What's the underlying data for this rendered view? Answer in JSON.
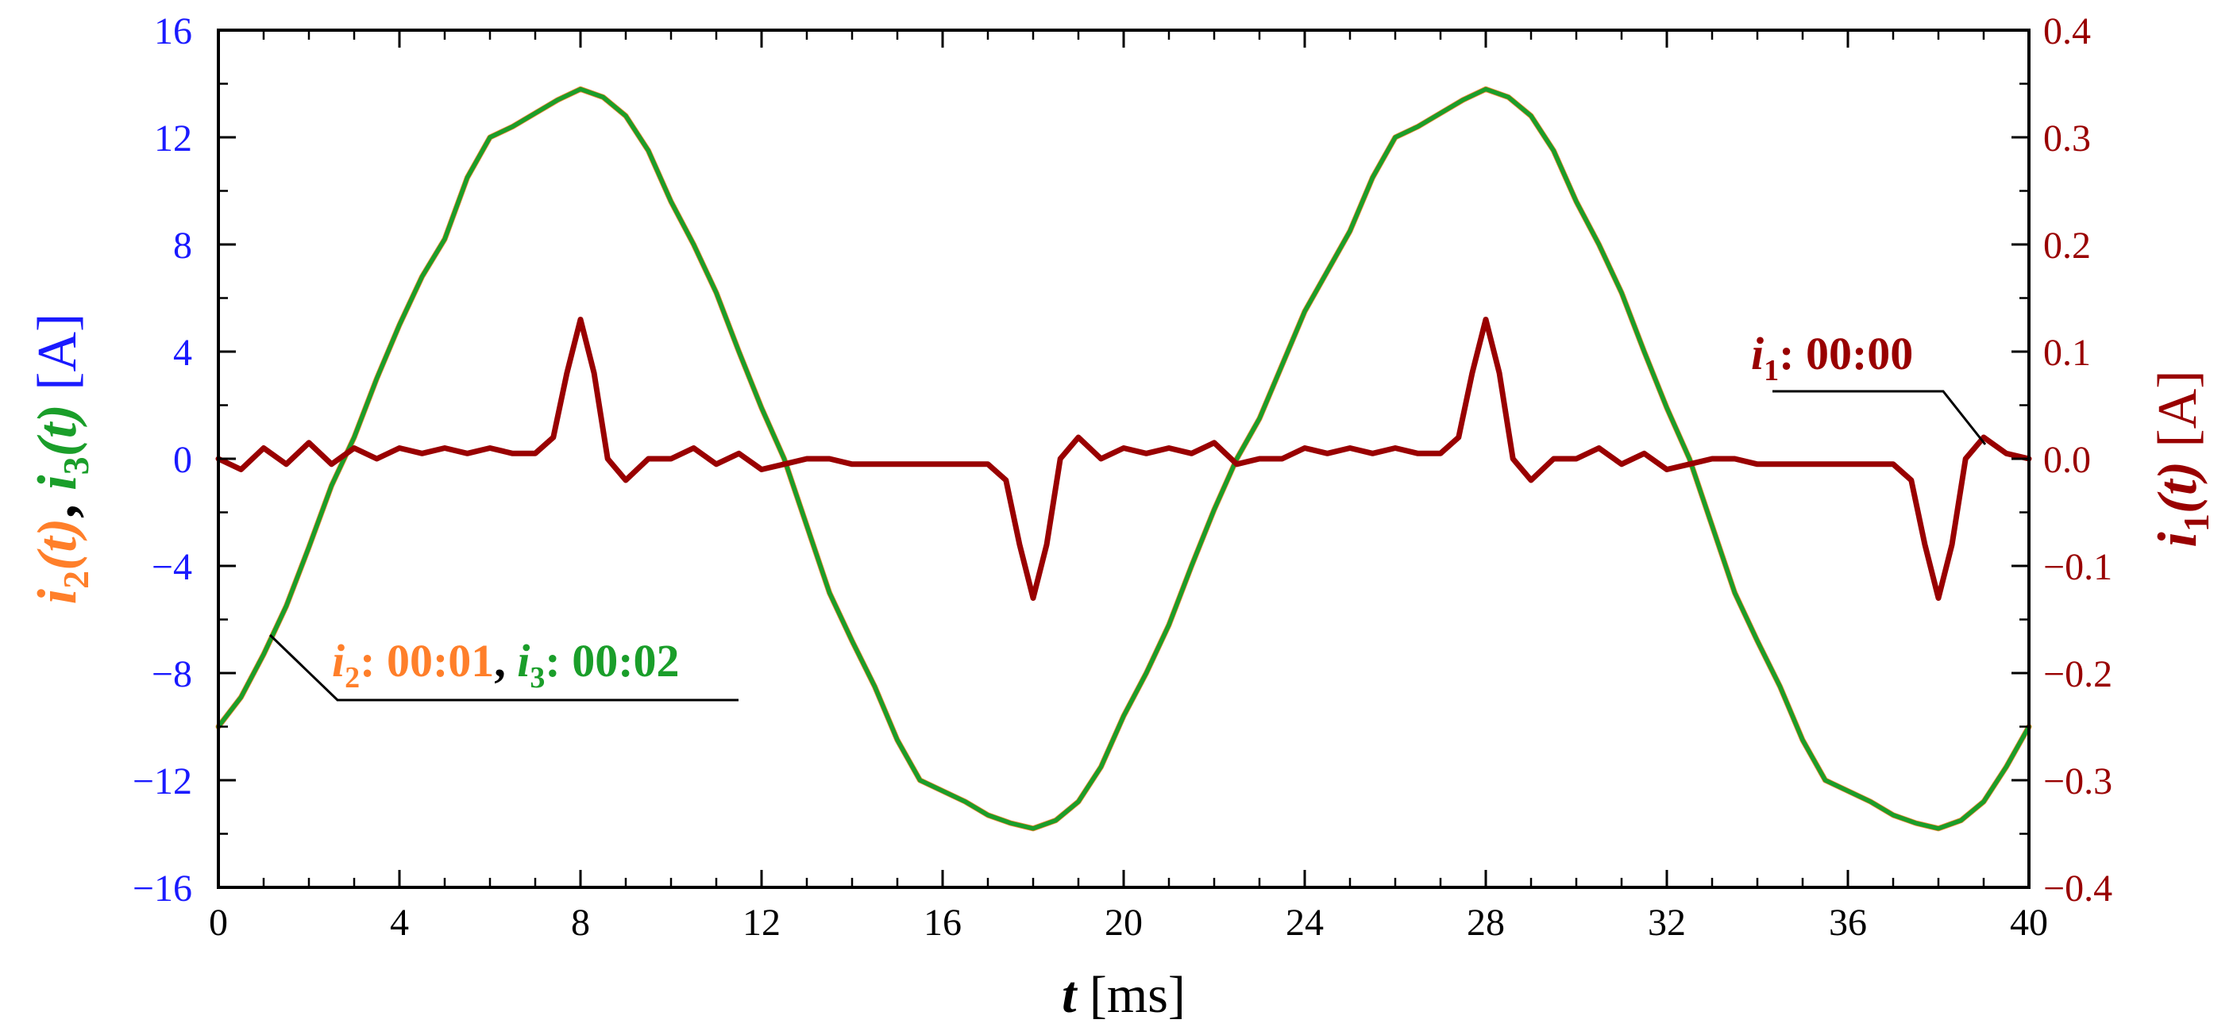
{
  "chart_data": {
    "type": "line",
    "xlabel": {
      "symbol": "t",
      "unit": "[ms]"
    },
    "ylabel_left": {
      "s1": "i",
      "s1sub": "2",
      "s1rest": "(t)",
      "sep": ", ",
      "s2": "i",
      "s2sub": "3",
      "s2rest": "(t)",
      "unit": "[A]"
    },
    "ylabel_right": {
      "sym": "i",
      "sub": "1",
      "rest": "(t)",
      "unit": "[A]"
    },
    "xlim": [
      0,
      40
    ],
    "ylim_left": [
      -16,
      16
    ],
    "ylim_right": [
      -0.4,
      0.4
    ],
    "x_ticks": [
      "0",
      "4",
      "8",
      "12",
      "16",
      "20",
      "24",
      "28",
      "32",
      "36",
      "40"
    ],
    "y_left_ticks": [
      "−16",
      "−12",
      "−8",
      "−4",
      "0",
      "4",
      "8",
      "12",
      "16"
    ],
    "y_right_ticks": [
      "−0.4",
      "−0.3",
      "−0.2",
      "−0.1",
      "0.0",
      "0.1",
      "0.2",
      "0.3",
      "0.4"
    ],
    "grid": false,
    "colors": {
      "left_axis": "#1a1aff",
      "right_axis": "#990000",
      "i1": "#990000",
      "i2": "#ff7f2a",
      "i3": "#1a9e2a",
      "sep": "#000000"
    },
    "annotations": {
      "i1": {
        "sym": "i",
        "sub": "1",
        "text": ": 00:00"
      },
      "i2": {
        "sym": "i",
        "sub": "2",
        "text": ": 00:01"
      },
      "sep": ", ",
      "i3": {
        "sym": "i",
        "sub": "3",
        "text": ": 00:02"
      }
    },
    "series": [
      {
        "name": "i2",
        "axis": "left",
        "x": [
          0,
          0.5,
          1,
          1.5,
          2,
          2.5,
          3,
          3.5,
          4,
          4.5,
          5,
          5.5,
          6,
          6.5,
          7,
          7.5,
          8,
          8.5,
          9,
          9.5,
          10,
          10.5,
          11,
          11.5,
          12,
          12.5,
          13,
          13.5,
          14,
          14.5,
          15,
          15.5,
          16,
          16.5,
          17,
          17.5,
          18,
          18.5,
          19,
          19.5,
          20,
          20.5,
          21,
          21.5,
          22,
          22.5,
          23,
          23.5,
          24,
          24.5,
          25,
          25.5,
          26,
          26.5,
          27,
          27.5,
          28,
          28.5,
          29,
          29.5,
          30,
          30.5,
          31,
          31.5,
          32,
          32.5,
          33,
          33.5,
          34,
          34.5,
          35,
          35.5,
          36,
          36.5,
          37,
          37.5,
          38,
          38.5,
          39,
          39.5,
          40
        ],
        "values": [
          -10,
          -8.9,
          -7.3,
          -5.5,
          -3.3,
          -1.0,
          0.8,
          3.0,
          5.0,
          6.8,
          8.2,
          10.5,
          12.0,
          12.4,
          12.9,
          13.4,
          13.8,
          13.5,
          12.8,
          11.5,
          9.6,
          8.0,
          6.2,
          4.0,
          1.9,
          0.0,
          -2.5,
          -5.0,
          -6.8,
          -8.5,
          -10.5,
          -12.0,
          -12.4,
          -12.8,
          -13.3,
          -13.6,
          -13.8,
          -13.5,
          -12.8,
          -11.5,
          -9.6,
          -8.0,
          -6.2,
          -4.0,
          -1.9,
          0.0,
          1.5,
          3.5,
          5.5,
          7.0,
          8.5,
          10.5,
          12.0,
          12.4,
          12.9,
          13.4,
          13.8,
          13.5,
          12.8,
          11.5,
          9.6,
          8.0,
          6.2,
          4.0,
          1.9,
          0.0,
          -2.5,
          -5.0,
          -6.8,
          -8.5,
          -10.5,
          -12.0,
          -12.4,
          -12.8,
          -13.3,
          -13.6,
          -13.8,
          -13.5,
          -12.8,
          -11.5,
          -10.0
        ]
      },
      {
        "name": "i3",
        "axis": "left",
        "x": [
          0,
          0.5,
          1,
          1.5,
          2,
          2.5,
          3,
          3.5,
          4,
          4.5,
          5,
          5.5,
          6,
          6.5,
          7,
          7.5,
          8,
          8.5,
          9,
          9.5,
          10,
          10.5,
          11,
          11.5,
          12,
          12.5,
          13,
          13.5,
          14,
          14.5,
          15,
          15.5,
          16,
          16.5,
          17,
          17.5,
          18,
          18.5,
          19,
          19.5,
          20,
          20.5,
          21,
          21.5,
          22,
          22.5,
          23,
          23.5,
          24,
          24.5,
          25,
          25.5,
          26,
          26.5,
          27,
          27.5,
          28,
          28.5,
          29,
          29.5,
          30,
          30.5,
          31,
          31.5,
          32,
          32.5,
          33,
          33.5,
          34,
          34.5,
          35,
          35.5,
          36,
          36.5,
          37,
          37.5,
          38,
          38.5,
          39,
          39.5,
          40
        ],
        "values": [
          -10,
          -8.9,
          -7.3,
          -5.5,
          -3.3,
          -1.0,
          0.8,
          3.0,
          5.0,
          6.8,
          8.2,
          10.5,
          12.0,
          12.4,
          12.9,
          13.4,
          13.8,
          13.5,
          12.8,
          11.5,
          9.6,
          8.0,
          6.2,
          4.0,
          1.9,
          0.0,
          -2.5,
          -5.0,
          -6.8,
          -8.5,
          -10.5,
          -12.0,
          -12.4,
          -12.8,
          -13.3,
          -13.6,
          -13.8,
          -13.5,
          -12.8,
          -11.5,
          -9.6,
          -8.0,
          -6.2,
          -4.0,
          -1.9,
          0.0,
          1.5,
          3.5,
          5.5,
          7.0,
          8.5,
          10.5,
          12.0,
          12.4,
          12.9,
          13.4,
          13.8,
          13.5,
          12.8,
          11.5,
          9.6,
          8.0,
          6.2,
          4.0,
          1.9,
          0.0,
          -2.5,
          -5.0,
          -6.8,
          -8.5,
          -10.5,
          -12.0,
          -12.4,
          -12.8,
          -13.3,
          -13.6,
          -13.8,
          -13.5,
          -12.8,
          -11.5,
          -10.0
        ]
      },
      {
        "name": "i1",
        "axis": "right",
        "x": [
          0,
          0.5,
          1,
          1.5,
          2,
          2.5,
          3,
          3.5,
          4,
          4.5,
          5,
          5.5,
          6,
          6.5,
          7,
          7.4,
          7.7,
          8,
          8.3,
          8.6,
          9,
          9.5,
          10,
          10.5,
          11,
          11.5,
          12,
          12.5,
          13,
          13.5,
          14,
          14.5,
          15,
          15.5,
          16,
          16.5,
          17,
          17.4,
          17.7,
          18,
          18.3,
          18.6,
          19,
          19.5,
          20,
          20.5,
          21,
          21.5,
          22,
          22.5,
          23,
          23.5,
          24,
          24.5,
          25,
          25.5,
          26,
          26.5,
          27,
          27.4,
          27.7,
          28,
          28.3,
          28.6,
          29,
          29.5,
          30,
          30.5,
          31,
          31.5,
          32,
          32.5,
          33,
          33.5,
          34,
          34.5,
          35,
          35.5,
          36,
          36.5,
          37,
          37.4,
          37.7,
          38,
          38.3,
          38.6,
          39,
          39.5,
          40
        ],
        "values": [
          0.0,
          -0.01,
          0.01,
          -0.005,
          0.015,
          -0.005,
          0.01,
          0.0,
          0.01,
          0.005,
          0.01,
          0.005,
          0.01,
          0.005,
          0.005,
          0.02,
          0.08,
          0.13,
          0.08,
          0.0,
          -0.02,
          0.0,
          0.0,
          0.01,
          -0.005,
          0.005,
          -0.01,
          -0.005,
          0.0,
          0.0,
          -0.005,
          -0.005,
          -0.005,
          -0.005,
          -0.005,
          -0.005,
          -0.005,
          -0.02,
          -0.08,
          -0.13,
          -0.08,
          0.0,
          0.02,
          0.0,
          0.01,
          0.005,
          0.01,
          0.005,
          0.015,
          -0.005,
          0.0,
          0.0,
          0.01,
          0.005,
          0.01,
          0.005,
          0.01,
          0.005,
          0.005,
          0.02,
          0.08,
          0.13,
          0.08,
          0.0,
          -0.02,
          0.0,
          0.0,
          0.01,
          -0.005,
          0.005,
          -0.01,
          -0.005,
          0.0,
          0.0,
          -0.005,
          -0.005,
          -0.005,
          -0.005,
          -0.005,
          -0.005,
          -0.005,
          -0.02,
          -0.08,
          -0.13,
          -0.08,
          0.0,
          0.02,
          0.005,
          0.0
        ]
      }
    ]
  }
}
